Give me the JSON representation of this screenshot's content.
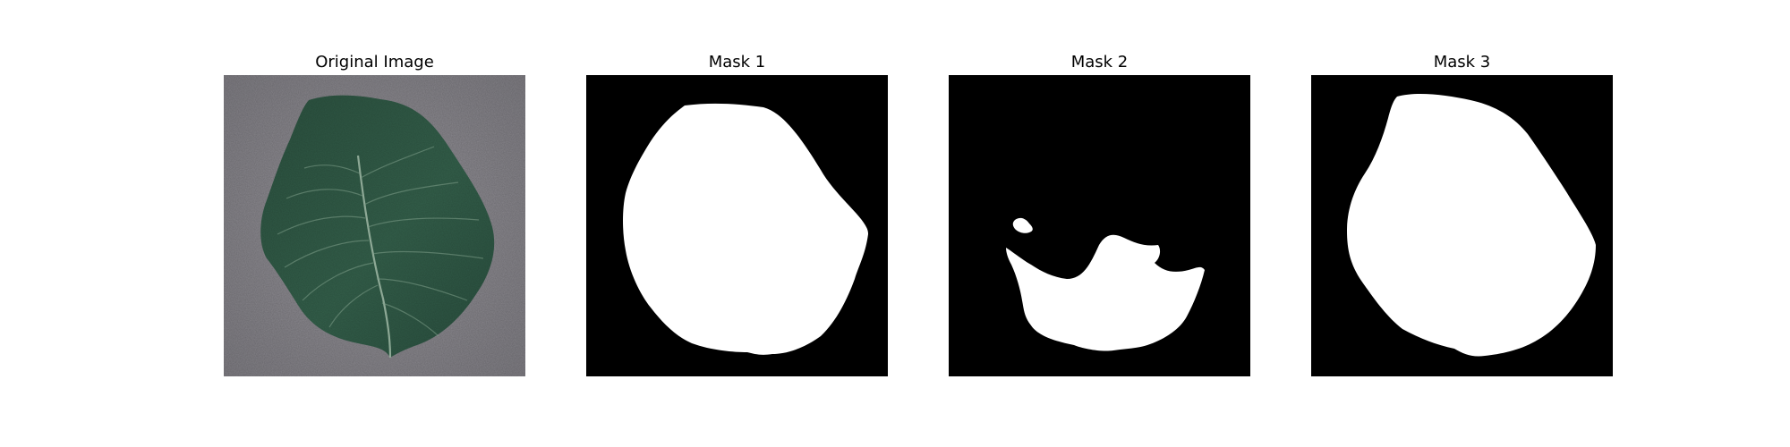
{
  "figure": {
    "panels": [
      {
        "title": "Original Image"
      },
      {
        "title": "Mask 1"
      },
      {
        "title": "Mask 2"
      },
      {
        "title": "Mask 3"
      }
    ]
  },
  "colors": {
    "background": "#ffffff",
    "mask_foreground": "#ffffff",
    "mask_background": "#000000",
    "photo_background": "#8c8a8f",
    "leaf": "#2f5744"
  }
}
